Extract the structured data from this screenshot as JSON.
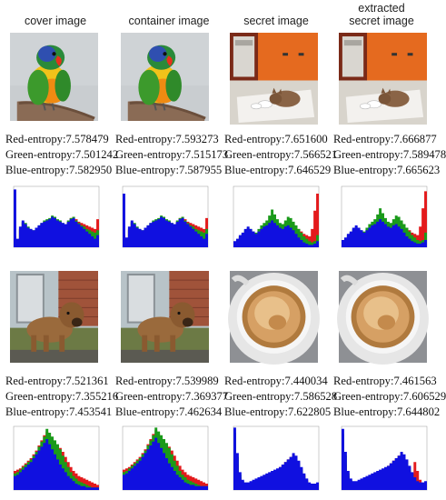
{
  "column_titles": [
    {
      "lines": [
        "cover image"
      ]
    },
    {
      "lines": [
        "container image"
      ]
    },
    {
      "lines": [
        "secret image"
      ]
    },
    {
      "lines": [
        "extracted",
        "secret image"
      ]
    }
  ],
  "rows": [
    {
      "panels": [
        {
          "image": "parrot",
          "entropy": [
            "Red-entropy:7.578479",
            "Green-entropy:7.501242",
            "Blue-entropy:7.582950"
          ]
        },
        {
          "image": "parrot",
          "entropy": [
            "Red-entropy:7.593273",
            "Green-entropy:7.515173",
            "Blue-entropy:7.587955"
          ]
        },
        {
          "image": "kitten",
          "entropy": [
            "Red-entropy:7.651600",
            "Green-entropy:7.566521",
            "Blue-entropy:7.646529"
          ]
        },
        {
          "image": "kitten",
          "entropy": [
            "Red-entropy:7.666877",
            "Green-entropy:7.589478",
            "Blue-entropy:7.665623"
          ]
        }
      ]
    },
    {
      "panels": [
        {
          "image": "puppy",
          "entropy": [
            "Red-entropy:7.521361",
            "Green-entropy:7.355216",
            "Blue-entropy:7.453541"
          ]
        },
        {
          "image": "puppy",
          "entropy": [
            "Red-entropy:7.539989",
            "Green-entropy:7.369377",
            "Blue-entropy:7.462634"
          ]
        },
        {
          "image": "coffee",
          "entropy": [
            "Red-entropy:7.440034",
            "Green-entropy:7.586528",
            "Blue-entropy:7.622805"
          ]
        },
        {
          "image": "coffee",
          "entropy": [
            "Red-entropy:7.461563",
            "Green-entropy:7.606529",
            "Blue-entropy:7.644802"
          ]
        }
      ]
    }
  ],
  "colors": {
    "red": "#e31a1c",
    "green": "#1a9a1a",
    "blue": "#1010e0"
  },
  "chart_data": [
    {
      "type": "area",
      "panel": "row1-cover",
      "xlim": [
        0,
        255
      ],
      "series": [
        {
          "name": "",
          "color": "red",
          "values": [
            18,
            10,
            30,
            40,
            36,
            30,
            28,
            26,
            30,
            34,
            38,
            40,
            42,
            45,
            48,
            46,
            42,
            40,
            38,
            36,
            42,
            48,
            50,
            46,
            42,
            40,
            38,
            36,
            34,
            32,
            30,
            46
          ]
        },
        {
          "name": "",
          "color": "green",
          "values": [
            12,
            8,
            28,
            42,
            40,
            34,
            30,
            28,
            30,
            36,
            40,
            44,
            46,
            48,
            52,
            50,
            46,
            44,
            40,
            38,
            44,
            48,
            50,
            44,
            40,
            36,
            34,
            30,
            28,
            26,
            24,
            28
          ]
        },
        {
          "name": "",
          "color": "blue",
          "values": [
            95,
            14,
            34,
            44,
            38,
            32,
            30,
            28,
            32,
            36,
            40,
            42,
            44,
            46,
            50,
            48,
            44,
            42,
            40,
            38,
            42,
            46,
            48,
            42,
            38,
            34,
            30,
            26,
            22,
            18,
            14,
            20
          ]
        }
      ]
    },
    {
      "type": "area",
      "panel": "row1-container",
      "xlim": [
        0,
        255
      ],
      "series": [
        {
          "name": "",
          "color": "red",
          "values": [
            20,
            12,
            30,
            40,
            36,
            30,
            28,
            26,
            30,
            34,
            38,
            40,
            42,
            45,
            48,
            46,
            42,
            40,
            38,
            36,
            42,
            48,
            50,
            46,
            42,
            40,
            38,
            36,
            34,
            32,
            30,
            48
          ]
        },
        {
          "name": "",
          "color": "green",
          "values": [
            14,
            10,
            28,
            42,
            40,
            34,
            30,
            28,
            30,
            36,
            40,
            44,
            46,
            48,
            52,
            50,
            46,
            44,
            40,
            38,
            44,
            48,
            50,
            44,
            40,
            36,
            34,
            30,
            28,
            26,
            24,
            30
          ]
        },
        {
          "name": "",
          "color": "blue",
          "values": [
            88,
            16,
            34,
            44,
            38,
            32,
            30,
            28,
            32,
            36,
            40,
            42,
            44,
            46,
            50,
            48,
            44,
            42,
            40,
            38,
            42,
            46,
            48,
            42,
            38,
            34,
            30,
            26,
            22,
            18,
            14,
            22
          ]
        }
      ]
    },
    {
      "type": "area",
      "panel": "row1-secret",
      "xlim": [
        0,
        255
      ],
      "series": [
        {
          "name": "",
          "color": "red",
          "values": [
            6,
            10,
            16,
            20,
            26,
            30,
            28,
            24,
            22,
            26,
            30,
            34,
            38,
            44,
            50,
            46,
            40,
            36,
            34,
            40,
            44,
            42,
            38,
            34,
            30,
            26,
            22,
            20,
            18,
            30,
            60,
            88
          ]
        },
        {
          "name": "",
          "color": "green",
          "values": [
            8,
            12,
            18,
            22,
            28,
            32,
            30,
            26,
            24,
            30,
            36,
            40,
            44,
            52,
            62,
            54,
            46,
            40,
            38,
            44,
            50,
            48,
            42,
            36,
            30,
            24,
            18,
            14,
            10,
            8,
            10,
            20
          ]
        },
        {
          "name": "",
          "color": "blue",
          "values": [
            10,
            14,
            20,
            24,
            30,
            34,
            30,
            26,
            22,
            26,
            30,
            34,
            36,
            40,
            44,
            40,
            36,
            32,
            30,
            34,
            36,
            32,
            28,
            22,
            16,
            12,
            8,
            6,
            4,
            4,
            6,
            10
          ]
        }
      ]
    },
    {
      "type": "area",
      "panel": "row1-extracted",
      "xlim": [
        0,
        255
      ],
      "series": [
        {
          "name": "",
          "color": "red",
          "values": [
            8,
            12,
            18,
            22,
            28,
            32,
            30,
            26,
            24,
            28,
            32,
            36,
            40,
            44,
            50,
            48,
            42,
            38,
            36,
            40,
            46,
            44,
            40,
            36,
            32,
            28,
            24,
            22,
            20,
            34,
            64,
            92
          ]
        },
        {
          "name": "",
          "color": "green",
          "values": [
            10,
            14,
            20,
            24,
            30,
            34,
            32,
            28,
            26,
            32,
            38,
            42,
            46,
            54,
            64,
            56,
            48,
            42,
            40,
            46,
            52,
            50,
            44,
            38,
            32,
            26,
            20,
            16,
            12,
            10,
            12,
            24
          ]
        },
        {
          "name": "",
          "color": "blue",
          "values": [
            12,
            16,
            22,
            26,
            32,
            36,
            32,
            28,
            24,
            28,
            32,
            36,
            38,
            42,
            46,
            42,
            38,
            34,
            32,
            36,
            38,
            34,
            30,
            24,
            18,
            14,
            10,
            8,
            6,
            6,
            8,
            12
          ]
        }
      ]
    },
    {
      "type": "area",
      "panel": "row2-cover",
      "xlim": [
        0,
        255
      ],
      "series": [
        {
          "name": "",
          "color": "red",
          "values": [
            30,
            32,
            34,
            38,
            42,
            46,
            50,
            56,
            62,
            70,
            78,
            86,
            92,
            86,
            80,
            74,
            70,
            66,
            60,
            52,
            44,
            36,
            30,
            26,
            22,
            20,
            18,
            16,
            14,
            12,
            10,
            8
          ]
        },
        {
          "name": "",
          "color": "green",
          "values": [
            26,
            28,
            32,
            36,
            40,
            44,
            48,
            54,
            60,
            68,
            76,
            84,
            96,
            90,
            84,
            78,
            72,
            64,
            54,
            44,
            36,
            28,
            22,
            18,
            14,
            12,
            10,
            8,
            6,
            4,
            4,
            4
          ]
        },
        {
          "name": "",
          "color": "blue",
          "values": [
            22,
            24,
            28,
            32,
            36,
            40,
            44,
            50,
            56,
            62,
            68,
            74,
            80,
            72,
            64,
            56,
            48,
            40,
            34,
            28,
            22,
            18,
            14,
            10,
            8,
            6,
            6,
            4,
            4,
            4,
            4,
            4
          ]
        }
      ]
    },
    {
      "type": "area",
      "panel": "row2-container",
      "xlim": [
        0,
        255
      ],
      "series": [
        {
          "name": "",
          "color": "red",
          "values": [
            32,
            34,
            36,
            40,
            44,
            48,
            52,
            58,
            64,
            72,
            80,
            88,
            94,
            88,
            82,
            76,
            72,
            68,
            62,
            54,
            46,
            38,
            32,
            28,
            24,
            22,
            20,
            18,
            16,
            14,
            12,
            10
          ]
        },
        {
          "name": "",
          "color": "green",
          "values": [
            28,
            30,
            34,
            38,
            42,
            46,
            50,
            56,
            62,
            70,
            78,
            86,
            98,
            92,
            86,
            80,
            74,
            66,
            56,
            46,
            38,
            30,
            24,
            20,
            16,
            14,
            12,
            10,
            8,
            6,
            6,
            6
          ]
        },
        {
          "name": "",
          "color": "blue",
          "values": [
            24,
            26,
            30,
            34,
            38,
            42,
            46,
            52,
            58,
            64,
            70,
            76,
            82,
            74,
            66,
            58,
            50,
            42,
            36,
            30,
            24,
            20,
            16,
            12,
            10,
            8,
            8,
            6,
            6,
            6,
            6,
            6
          ]
        }
      ]
    },
    {
      "type": "area",
      "panel": "row2-secret",
      "xlim": [
        0,
        255
      ],
      "series": [
        {
          "name": "",
          "color": "red",
          "values": [
            60,
            40,
            20,
            12,
            10,
            10,
            12,
            14,
            16,
            18,
            20,
            22,
            24,
            26,
            28,
            30,
            32,
            36,
            40,
            44,
            48,
            52,
            56,
            52,
            44,
            34,
            24,
            16,
            10,
            8,
            8,
            10
          ]
        },
        {
          "name": "",
          "color": "green",
          "values": [
            90,
            52,
            24,
            14,
            10,
            10,
            12,
            14,
            16,
            18,
            20,
            22,
            24,
            26,
            28,
            30,
            32,
            34,
            38,
            42,
            46,
            50,
            54,
            50,
            42,
            32,
            22,
            14,
            10,
            8,
            8,
            10
          ]
        },
        {
          "name": "",
          "color": "blue",
          "values": [
            98,
            58,
            28,
            16,
            12,
            12,
            14,
            16,
            18,
            20,
            22,
            24,
            26,
            28,
            30,
            32,
            34,
            36,
            40,
            44,
            48,
            52,
            58,
            54,
            46,
            36,
            26,
            18,
            12,
            10,
            10,
            12
          ]
        }
      ]
    },
    {
      "type": "area",
      "panel": "row2-extracted",
      "xlim": [
        0,
        255
      ],
      "series": [
        {
          "name": "",
          "color": "red",
          "values": [
            58,
            40,
            22,
            14,
            12,
            12,
            14,
            16,
            18,
            20,
            22,
            24,
            26,
            28,
            30,
            32,
            34,
            38,
            42,
            46,
            50,
            54,
            58,
            54,
            46,
            36,
            26,
            44,
            30,
            16,
            10,
            12
          ]
        },
        {
          "name": "",
          "color": "green",
          "values": [
            88,
            54,
            26,
            16,
            12,
            12,
            14,
            16,
            18,
            20,
            22,
            24,
            26,
            28,
            30,
            32,
            34,
            36,
            40,
            44,
            48,
            52,
            56,
            52,
            44,
            34,
            24,
            18,
            12,
            10,
            10,
            12
          ]
        },
        {
          "name": "",
          "color": "blue",
          "values": [
            96,
            60,
            30,
            18,
            14,
            14,
            16,
            18,
            20,
            22,
            24,
            26,
            28,
            30,
            32,
            34,
            36,
            38,
            42,
            46,
            50,
            54,
            60,
            56,
            48,
            38,
            28,
            20,
            14,
            12,
            12,
            14
          ]
        }
      ]
    }
  ]
}
